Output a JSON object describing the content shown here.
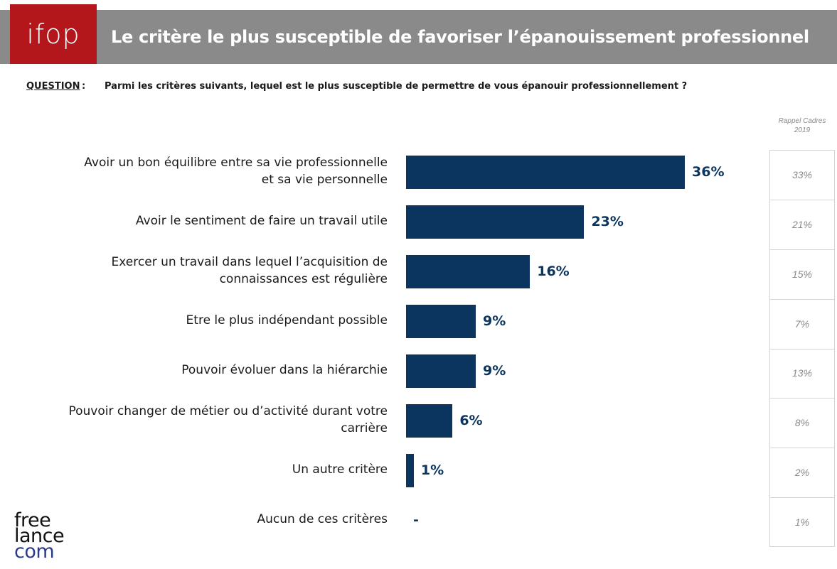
{
  "header": {
    "logo_text": "ifop",
    "title": "Le critère le plus susceptible de favoriser l’épanouissement professionnel"
  },
  "question": {
    "label": "QUESTION",
    "colon": ":",
    "text": "Parmi les critères suivants, lequel est le plus susceptible de permettre de vous épanouir professionnellement ?"
  },
  "recall": {
    "header_line1": "Rappel Cadres",
    "header_line2": "2019",
    "values": [
      "33%",
      "21%",
      "15%",
      "7%",
      "13%",
      "8%",
      "2%",
      "1%"
    ]
  },
  "chart_data": {
    "type": "bar",
    "orientation": "horizontal",
    "categories": [
      [
        "Avoir un bon équilibre entre sa vie professionnelle",
        "et sa vie personnelle"
      ],
      [
        "Avoir le sentiment de faire un travail utile"
      ],
      [
        "Exercer un travail dans lequel l’acquisition de",
        "connaissances est régulière"
      ],
      [
        "Etre le plus indépendant possible"
      ],
      [
        "Pouvoir évoluer dans la hiérarchie"
      ],
      [
        "Pouvoir changer de métier ou d’activité durant votre",
        "carrière"
      ],
      [
        "Un autre critère"
      ],
      [
        "Aucun de ces critères"
      ]
    ],
    "values": [
      36,
      23,
      16,
      9,
      9,
      6,
      1,
      0
    ],
    "value_labels": [
      "36%",
      "23%",
      "16%",
      "9%",
      "9%",
      "6%",
      "1%",
      "-"
    ],
    "bar_color": "#0b355f"
  },
  "brand": {
    "line1": "free",
    "line2": "lance",
    "line3": "com"
  }
}
